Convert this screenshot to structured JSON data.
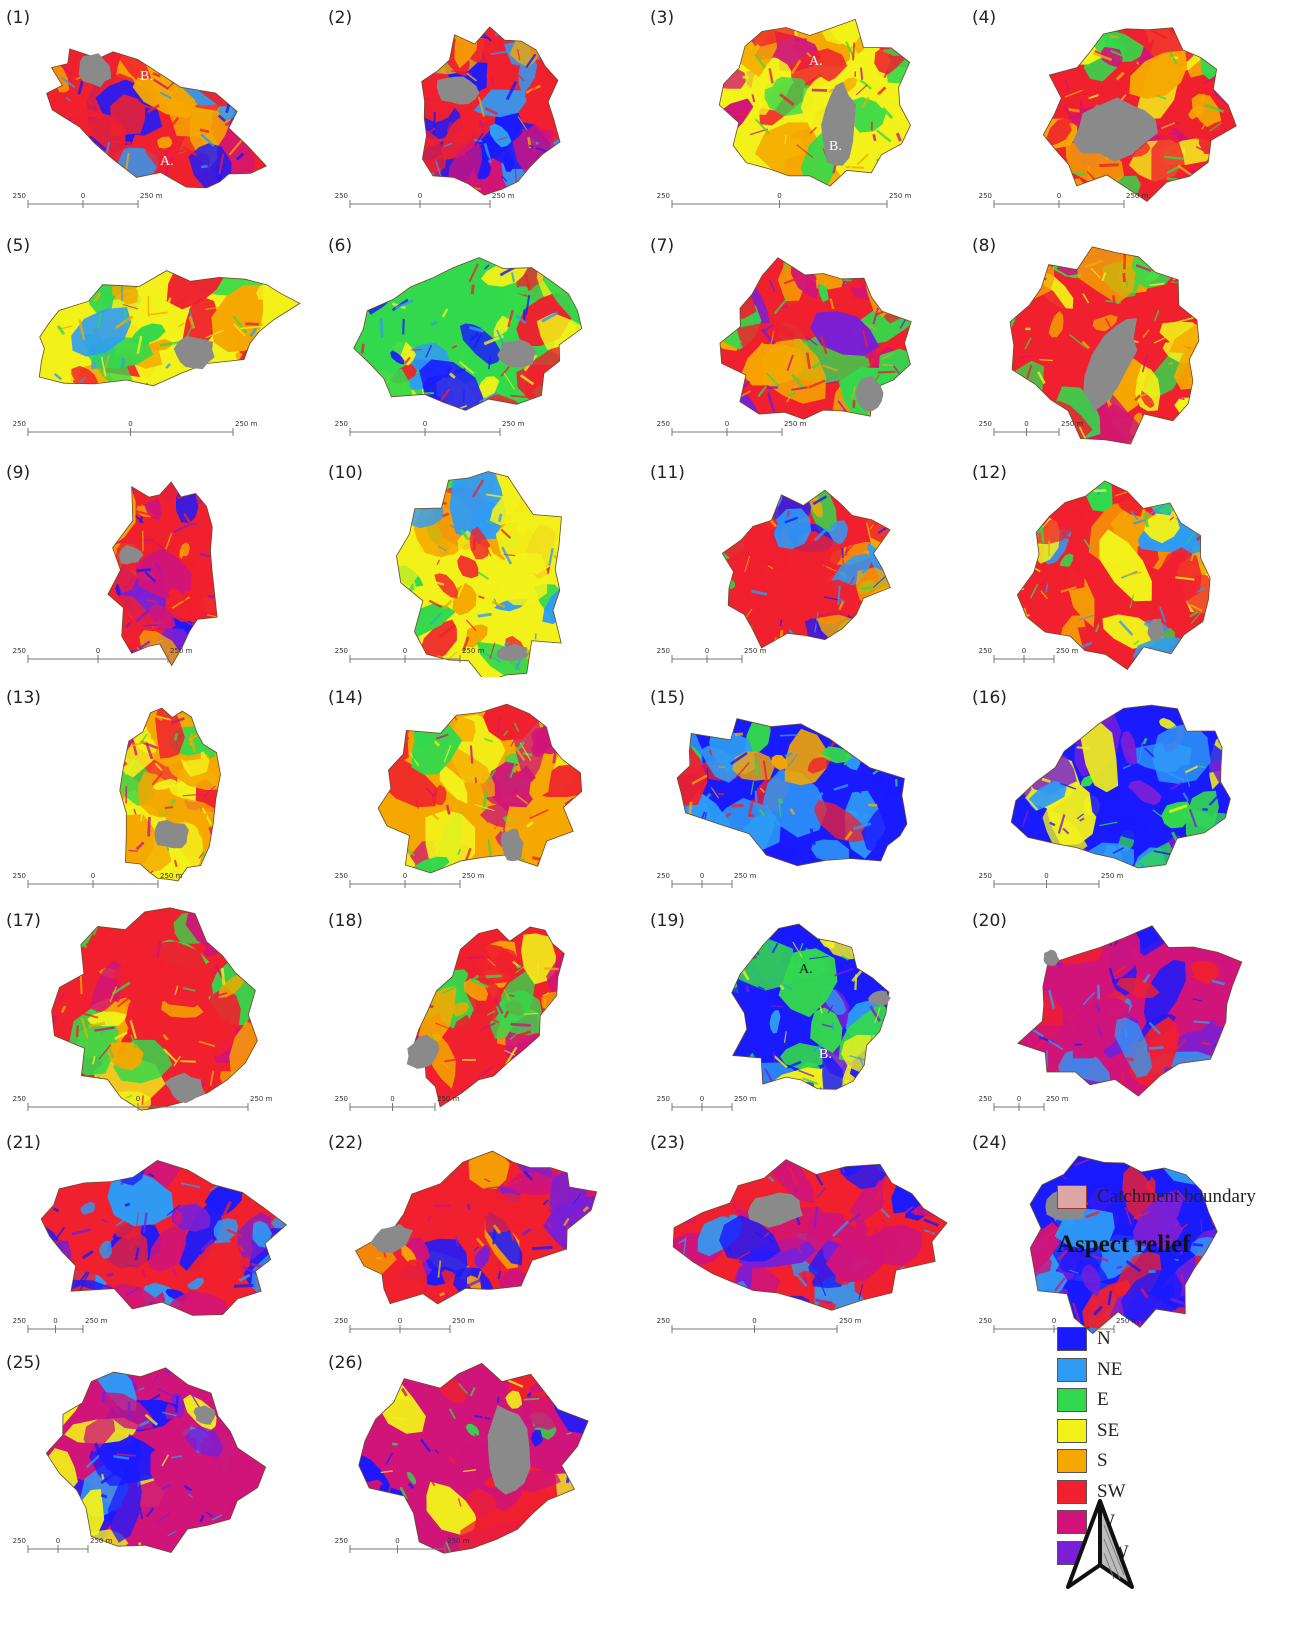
{
  "colors": {
    "N": "#1a1aff",
    "NE": "#2e9cf5",
    "E": "#33d94c",
    "SE": "#f2f21a",
    "S": "#f5a800",
    "SW": "#f0202e",
    "W": "#d0147a",
    "NW": "#7a1fd6",
    "lake": "#8a8a8a",
    "catchment_fill": "#dca6a6",
    "catchment_border": "#9c3a3a"
  },
  "panels": [
    {
      "label": "(1)",
      "scale": [
        "250",
        "0",
        "250 m"
      ],
      "mix": [
        "SW",
        "S",
        "N",
        "NE",
        "W"
      ],
      "annotations": [
        "B.",
        "A."
      ]
    },
    {
      "label": "(2)",
      "scale": [
        "250",
        "0",
        "250 m"
      ],
      "mix": [
        "SW",
        "S",
        "N",
        "NE",
        "W"
      ],
      "annotations": []
    },
    {
      "label": "(3)",
      "scale": [
        "250",
        "0",
        "250 m"
      ],
      "mix": [
        "SE",
        "E",
        "SW",
        "W",
        "S"
      ],
      "annotations": [
        "A.",
        "B."
      ]
    },
    {
      "label": "(4)",
      "scale": [
        "250",
        "0",
        "250 m"
      ],
      "mix": [
        "SW",
        "S",
        "SE",
        "E",
        "W"
      ],
      "annotations": []
    },
    {
      "label": "(5)",
      "scale": [
        "250",
        "0",
        "250 m"
      ],
      "mix": [
        "SE",
        "S",
        "SW",
        "E",
        "NE"
      ],
      "annotations": []
    },
    {
      "label": "(6)",
      "scale": [
        "250",
        "0",
        "250 m"
      ],
      "mix": [
        "E",
        "SE",
        "NE",
        "SW",
        "N"
      ],
      "annotations": []
    },
    {
      "label": "(7)",
      "scale": [
        "250",
        "0",
        "250 m"
      ],
      "mix": [
        "SW",
        "W",
        "S",
        "NW",
        "E"
      ],
      "annotations": []
    },
    {
      "label": "(8)",
      "scale": [
        "250",
        "0",
        "250 m"
      ],
      "mix": [
        "SW",
        "S",
        "SE",
        "E",
        "W"
      ],
      "annotations": []
    },
    {
      "label": "(9)",
      "scale": [
        "250",
        "0",
        "250 m"
      ],
      "mix": [
        "SW",
        "W",
        "N",
        "S",
        "NW"
      ],
      "annotations": []
    },
    {
      "label": "(10)",
      "scale": [
        "250",
        "0",
        "250 m"
      ],
      "mix": [
        "SE",
        "E",
        "SW",
        "S",
        "NE"
      ],
      "annotations": []
    },
    {
      "label": "(11)",
      "scale": [
        "250",
        "0",
        "250 m"
      ],
      "mix": [
        "SW",
        "E",
        "NE",
        "N",
        "S"
      ],
      "annotations": []
    },
    {
      "label": "(12)",
      "scale": [
        "250",
        "0",
        "250 m"
      ],
      "mix": [
        "SW",
        "S",
        "E",
        "NE",
        "SE"
      ],
      "annotations": []
    },
    {
      "label": "(13)",
      "scale": [
        "250",
        "0",
        "250 m"
      ],
      "mix": [
        "S",
        "SE",
        "SW",
        "E",
        "W"
      ],
      "annotations": []
    },
    {
      "label": "(14)",
      "scale": [
        "250",
        "0",
        "250 m"
      ],
      "mix": [
        "S",
        "SE",
        "E",
        "SW",
        "W"
      ],
      "annotations": []
    },
    {
      "label": "(15)",
      "scale": [
        "250",
        "0",
        "250 m"
      ],
      "mix": [
        "N",
        "NE",
        "SW",
        "S",
        "E"
      ],
      "annotations": []
    },
    {
      "label": "(16)",
      "scale": [
        "250",
        "0",
        "250 m"
      ],
      "mix": [
        "N",
        "NE",
        "E",
        "NW",
        "SE"
      ],
      "annotations": []
    },
    {
      "label": "(17)",
      "scale": [
        "250",
        "0",
        "250 m"
      ],
      "mix": [
        "SW",
        "S",
        "SE",
        "E",
        "W"
      ],
      "annotations": []
    },
    {
      "label": "(18)",
      "scale": [
        "250",
        "0",
        "250 m"
      ],
      "mix": [
        "SW",
        "S",
        "W",
        "SE",
        "E"
      ],
      "annotations": []
    },
    {
      "label": "(19)",
      "scale": [
        "250",
        "0",
        "250 m"
      ],
      "mix": [
        "N",
        "NE",
        "E",
        "SE",
        "NW"
      ],
      "annotations": [
        "A.",
        "B."
      ]
    },
    {
      "label": "(20)",
      "scale": [
        "250",
        "0",
        "250 m"
      ],
      "mix": [
        "W",
        "N",
        "NW",
        "SW",
        "NE"
      ],
      "annotations": []
    },
    {
      "label": "(21)",
      "scale": [
        "250",
        "0",
        "250 m"
      ],
      "mix": [
        "SW",
        "N",
        "NE",
        "NW",
        "W"
      ],
      "annotations": []
    },
    {
      "label": "(22)",
      "scale": [
        "250",
        "0",
        "250 m"
      ],
      "mix": [
        "SW",
        "W",
        "N",
        "NW",
        "S"
      ],
      "annotations": []
    },
    {
      "label": "(23)",
      "scale": [
        "250",
        "0",
        "250 m"
      ],
      "mix": [
        "SW",
        "N",
        "NE",
        "W",
        "NW"
      ],
      "annotations": []
    },
    {
      "label": "(24)",
      "scale": [
        "250",
        "0",
        "250 m"
      ],
      "mix": [
        "N",
        "NW",
        "W",
        "SW",
        "NE"
      ],
      "annotations": []
    },
    {
      "label": "(25)",
      "scale": [
        "250",
        "0",
        "250 m"
      ],
      "mix": [
        "W",
        "N",
        "NW",
        "NE",
        "SE"
      ],
      "annotations": []
    },
    {
      "label": "(26)",
      "scale": [
        "250",
        "0",
        "250 m"
      ],
      "mix": [
        "W",
        "SW",
        "E",
        "N",
        "SE"
      ],
      "annotations": []
    }
  ],
  "legend": {
    "catchment_label": "Catchment boundary",
    "title": "Aspect relief",
    "items": [
      {
        "key": "N",
        "label": "N"
      },
      {
        "key": "NE",
        "label": "NE"
      },
      {
        "key": "E",
        "label": "E"
      },
      {
        "key": "SE",
        "label": "SE"
      },
      {
        "key": "S",
        "label": "S"
      },
      {
        "key": "SW",
        "label": "SW"
      },
      {
        "key": "W",
        "label": "W"
      },
      {
        "key": "NW",
        "label": "NW"
      }
    ]
  },
  "north_arrow": "north-arrow-icon"
}
